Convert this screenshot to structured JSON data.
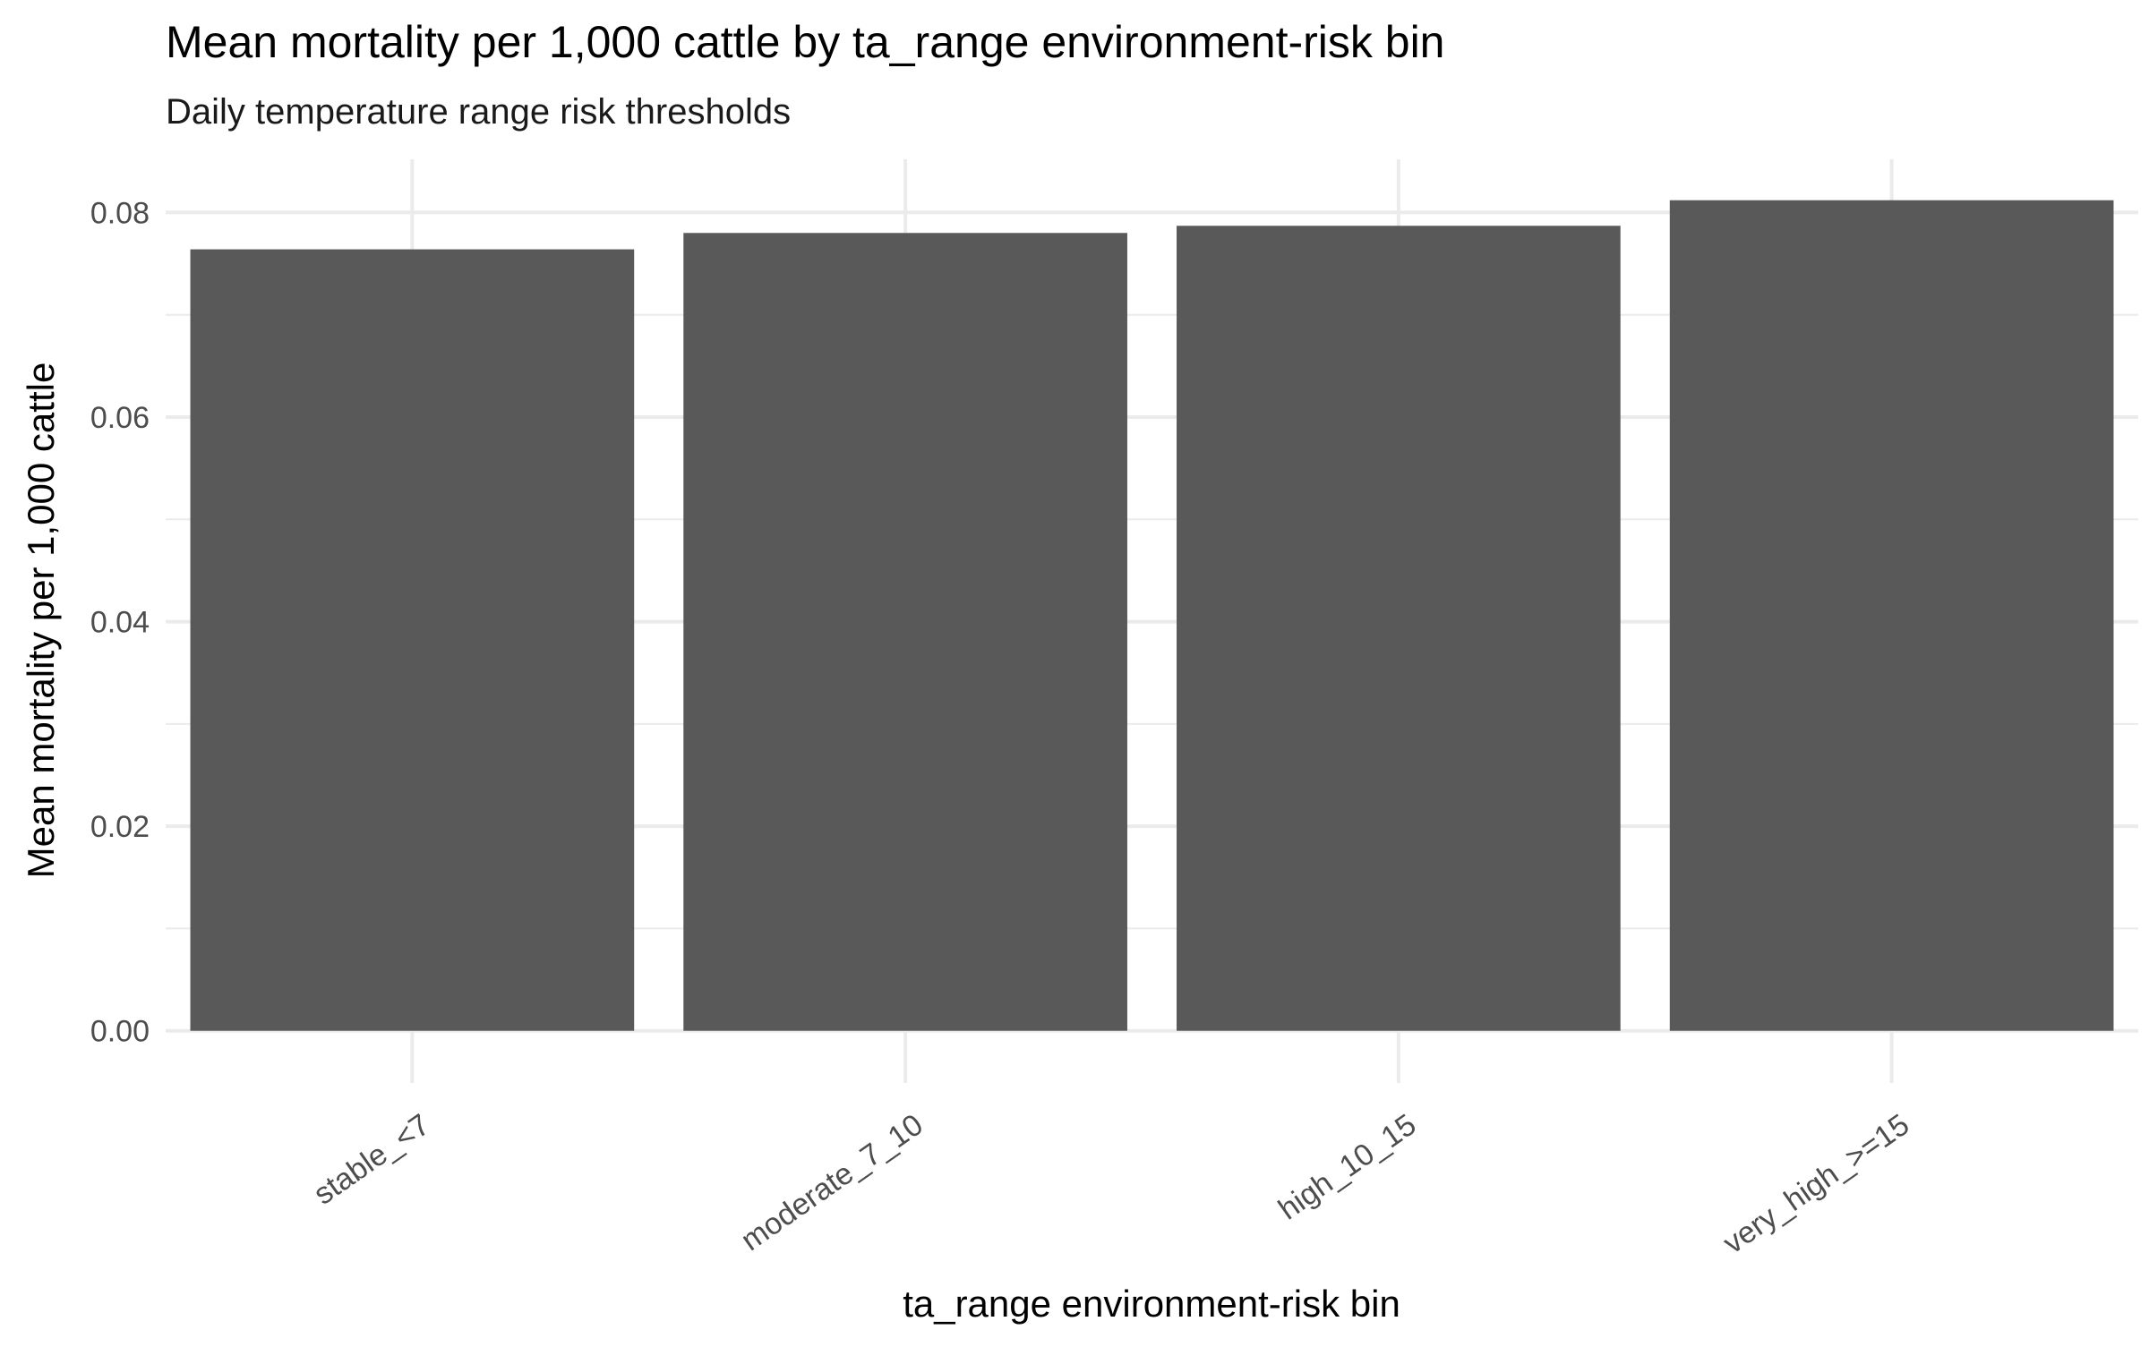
{
  "chart_data": {
    "type": "bar",
    "title": "Mean mortality per 1,000 cattle by ta_range environment-risk bin",
    "subtitle": "Daily temperature range risk thresholds",
    "xlabel": "ta_range environment-risk bin",
    "ylabel": "Mean mortality per 1,000 cattle",
    "categories": [
      "stable_<7",
      "moderate_7_10",
      "high_10_15",
      "very_high_>=15"
    ],
    "values": [
      0.0764,
      0.078,
      0.0787,
      0.0812
    ],
    "ylim": [
      -0.0051,
      0.0852
    ],
    "yticks": [
      0.0,
      0.02,
      0.04,
      0.06,
      0.08
    ],
    "ytick_labels": [
      "0.00",
      "0.02",
      "0.04",
      "0.06",
      "0.08"
    ],
    "grid": true,
    "bar_color": "#595959",
    "grid_color": "#ebebeb",
    "tick_text_color": "#4d4d4d"
  }
}
